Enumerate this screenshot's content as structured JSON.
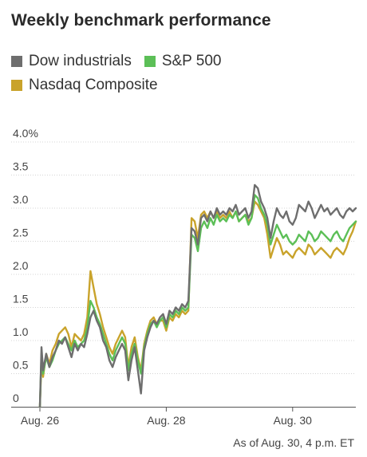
{
  "chart_data": {
    "type": "line",
    "title": "Weekly benchmark performance",
    "xlabel": "",
    "ylabel": "",
    "y_unit_suffix": "%",
    "ylim": [
      0,
      4.0
    ],
    "yticks": [
      0,
      0.5,
      1.0,
      1.5,
      2.0,
      2.5,
      3.0,
      3.5,
      4.0
    ],
    "ytick_labels": [
      "0",
      "0.5",
      "1.0",
      "1.5",
      "2.0",
      "2.5",
      "3.0",
      "3.5",
      "4.0%"
    ],
    "x_range": [
      0,
      100
    ],
    "xticks": [
      {
        "x": 0,
        "label": "Aug. 26"
      },
      {
        "x": 40,
        "label": "Aug. 28"
      },
      {
        "x": 80,
        "label": "Aug. 30"
      }
    ],
    "grid": "horizontal",
    "legend_position": "top-left",
    "annotation": "As of Aug. 30, 4 p.m. ET",
    "series": [
      {
        "name": "Dow industrials",
        "color": "#6e6e6e",
        "x": [
          0,
          0.5,
          1,
          2,
          3,
          4,
          5,
          6,
          7,
          8,
          9,
          10,
          11,
          12,
          13,
          14,
          15,
          16,
          17,
          18,
          19,
          20,
          21,
          22,
          23,
          24,
          25,
          26,
          27,
          28,
          29,
          30,
          31,
          32,
          33,
          34,
          35,
          36,
          37,
          38,
          39,
          40,
          41,
          42,
          43,
          44,
          45,
          46,
          47,
          48,
          49,
          50,
          51,
          52,
          53,
          54,
          55,
          56,
          57,
          58,
          59,
          60,
          61,
          62,
          63,
          64,
          65,
          66,
          67,
          68,
          69,
          70,
          71,
          72,
          73,
          74,
          75,
          76,
          77,
          78,
          79,
          80,
          81,
          82,
          83,
          84,
          85,
          86,
          87,
          88,
          89,
          90,
          91,
          92,
          93,
          94,
          95,
          96,
          97,
          98,
          99,
          100
        ],
        "values": [
          0,
          0.9,
          0.55,
          0.8,
          0.6,
          0.75,
          0.85,
          1.0,
          0.95,
          1.05,
          0.9,
          0.75,
          0.95,
          0.85,
          0.95,
          0.9,
          1.1,
          1.35,
          1.45,
          1.3,
          1.2,
          1.0,
          0.9,
          0.7,
          0.6,
          0.75,
          0.85,
          0.95,
          0.85,
          0.4,
          0.7,
          0.9,
          0.55,
          0.2,
          0.85,
          1.05,
          1.2,
          1.3,
          1.25,
          1.35,
          1.4,
          1.25,
          1.45,
          1.4,
          1.5,
          1.45,
          1.55,
          1.5,
          1.6,
          2.7,
          2.65,
          2.45,
          2.85,
          2.9,
          2.8,
          2.95,
          2.85,
          3.0,
          2.9,
          2.95,
          2.9,
          3.0,
          2.95,
          3.05,
          2.9,
          2.95,
          3.0,
          2.85,
          2.95,
          3.35,
          3.3,
          3.1,
          3.0,
          2.85,
          2.55,
          2.8,
          3.0,
          2.9,
          2.85,
          2.95,
          2.8,
          2.75,
          2.85,
          3.05,
          3.0,
          2.95,
          3.1,
          3.0,
          2.85,
          2.95,
          3.05,
          2.95,
          3.0,
          2.9,
          2.95,
          3.0,
          2.9,
          2.85,
          2.95,
          3.0,
          2.95,
          3.0
        ]
      },
      {
        "name": "S&P 500",
        "color": "#5cbf57",
        "x": [
          0,
          0.5,
          1,
          2,
          3,
          4,
          5,
          6,
          7,
          8,
          9,
          10,
          11,
          12,
          13,
          14,
          15,
          16,
          17,
          18,
          19,
          20,
          21,
          22,
          23,
          24,
          25,
          26,
          27,
          28,
          29,
          30,
          31,
          32,
          33,
          34,
          35,
          36,
          37,
          38,
          39,
          40,
          41,
          42,
          43,
          44,
          45,
          46,
          47,
          48,
          49,
          50,
          51,
          52,
          53,
          54,
          55,
          56,
          57,
          58,
          59,
          60,
          61,
          62,
          63,
          64,
          65,
          66,
          67,
          68,
          69,
          70,
          71,
          72,
          73,
          74,
          75,
          76,
          77,
          78,
          79,
          80,
          81,
          82,
          83,
          84,
          85,
          86,
          87,
          88,
          89,
          90,
          91,
          92,
          93,
          94,
          95,
          96,
          97,
          98,
          99,
          100
        ],
        "values": [
          0,
          0.8,
          0.5,
          0.75,
          0.6,
          0.7,
          0.85,
          0.95,
          1.0,
          1.05,
          0.95,
          0.85,
          1.0,
          0.9,
          0.95,
          1.0,
          1.2,
          1.6,
          1.5,
          1.35,
          1.25,
          1.1,
          0.95,
          0.8,
          0.7,
          0.85,
          0.95,
          1.05,
          0.95,
          0.55,
          0.8,
          0.95,
          0.7,
          0.5,
          0.9,
          1.1,
          1.25,
          1.3,
          1.2,
          1.3,
          1.35,
          1.2,
          1.4,
          1.35,
          1.45,
          1.4,
          1.5,
          1.45,
          1.5,
          2.6,
          2.55,
          2.35,
          2.7,
          2.8,
          2.7,
          2.85,
          2.75,
          2.9,
          2.8,
          2.85,
          2.8,
          2.9,
          2.85,
          2.95,
          2.8,
          2.85,
          2.9,
          2.75,
          2.85,
          3.2,
          3.15,
          3.0,
          2.9,
          2.75,
          2.45,
          2.6,
          2.75,
          2.65,
          2.55,
          2.6,
          2.5,
          2.45,
          2.5,
          2.6,
          2.55,
          2.5,
          2.65,
          2.6,
          2.5,
          2.55,
          2.65,
          2.6,
          2.55,
          2.5,
          2.6,
          2.65,
          2.55,
          2.5,
          2.6,
          2.7,
          2.75,
          2.8
        ]
      },
      {
        "name": "Nasdaq Composite",
        "color": "#c9a32b",
        "x": [
          0,
          0.5,
          1,
          2,
          3,
          4,
          5,
          6,
          7,
          8,
          9,
          10,
          11,
          12,
          13,
          14,
          15,
          16,
          17,
          18,
          19,
          20,
          21,
          22,
          23,
          24,
          25,
          26,
          27,
          28,
          29,
          30,
          31,
          32,
          33,
          34,
          35,
          36,
          37,
          38,
          39,
          40,
          41,
          42,
          43,
          44,
          45,
          46,
          47,
          48,
          49,
          50,
          51,
          52,
          53,
          54,
          55,
          56,
          57,
          58,
          59,
          60,
          61,
          62,
          63,
          64,
          65,
          66,
          67,
          68,
          69,
          70,
          71,
          72,
          73,
          74,
          75,
          76,
          77,
          78,
          79,
          80,
          81,
          82,
          83,
          84,
          85,
          86,
          87,
          88,
          89,
          90,
          91,
          92,
          93,
          94,
          95,
          96,
          97,
          98,
          99,
          100
        ],
        "values": [
          0,
          0.7,
          0.45,
          0.8,
          0.65,
          0.85,
          0.95,
          1.1,
          1.15,
          1.2,
          1.1,
          0.9,
          1.1,
          1.05,
          1.0,
          1.1,
          1.35,
          2.05,
          1.8,
          1.55,
          1.4,
          1.2,
          1.05,
          0.9,
          0.8,
          0.95,
          1.05,
          1.15,
          1.05,
          0.6,
          0.9,
          1.05,
          0.75,
          0.55,
          0.95,
          1.15,
          1.3,
          1.35,
          1.25,
          1.3,
          1.3,
          1.15,
          1.35,
          1.3,
          1.4,
          1.35,
          1.45,
          1.4,
          1.45,
          2.85,
          2.8,
          2.55,
          2.9,
          2.95,
          2.85,
          2.95,
          2.85,
          2.95,
          2.85,
          2.9,
          2.85,
          2.95,
          2.85,
          2.95,
          2.8,
          2.85,
          2.9,
          2.8,
          2.85,
          3.1,
          3.05,
          2.95,
          2.85,
          2.6,
          2.25,
          2.4,
          2.55,
          2.45,
          2.3,
          2.35,
          2.3,
          2.25,
          2.35,
          2.4,
          2.35,
          2.3,
          2.45,
          2.4,
          2.3,
          2.35,
          2.4,
          2.35,
          2.3,
          2.25,
          2.35,
          2.4,
          2.35,
          2.3,
          2.4,
          2.55,
          2.65,
          2.8
        ]
      }
    ]
  }
}
